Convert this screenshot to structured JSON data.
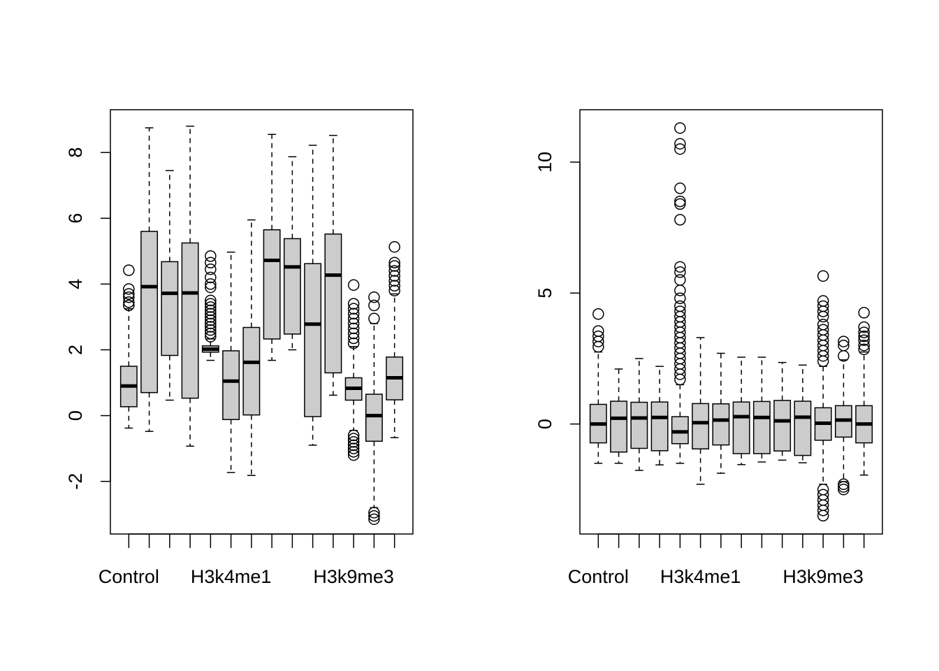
{
  "chart_data": [
    {
      "type": "boxplot",
      "xlabel": "",
      "ylabel": "",
      "ylim": [
        -3.6,
        9.3
      ],
      "y_ticks": [
        -2,
        0,
        2,
        4,
        6,
        8
      ],
      "y_tick_labels": [
        "-2",
        "0",
        "2",
        "4",
        "6",
        "8"
      ],
      "x_tick_labels": [
        {
          "index": 1,
          "label": "Control"
        },
        {
          "index": 6,
          "label": "H3k4me1"
        },
        {
          "index": 12,
          "label": "H3k9me3"
        }
      ],
      "box_fill": "#cccccc",
      "boxes": [
        {
          "q1": 0.27,
          "median": 0.9,
          "q3": 1.5,
          "lower_whisker": -0.38,
          "upper_whisker": 3.25,
          "outliers": [
            3.35,
            3.45,
            3.6,
            3.7,
            3.85,
            4.42
          ]
        },
        {
          "q1": 0.7,
          "median": 3.92,
          "q3": 5.6,
          "lower_whisker": -0.48,
          "upper_whisker": 8.75,
          "outliers": []
        },
        {
          "q1": 1.83,
          "median": 3.72,
          "q3": 4.68,
          "lower_whisker": 0.47,
          "upper_whisker": 7.45,
          "outliers": []
        },
        {
          "q1": 0.53,
          "median": 3.73,
          "q3": 5.25,
          "lower_whisker": -0.93,
          "upper_whisker": 8.8,
          "outliers": []
        },
        {
          "q1": 1.93,
          "median": 2.02,
          "q3": 2.12,
          "lower_whisker": 1.68,
          "upper_whisker": 2.33,
          "outliers": [
            2.4,
            2.5,
            2.6,
            2.7,
            2.8,
            2.9,
            3.0,
            3.1,
            3.2,
            3.3,
            3.4,
            3.5,
            3.9,
            4.0,
            4.2,
            4.45,
            4.65,
            4.85
          ]
        },
        {
          "q1": -0.12,
          "median": 1.05,
          "q3": 1.97,
          "lower_whisker": -1.73,
          "upper_whisker": 4.97,
          "outliers": []
        },
        {
          "q1": 0.02,
          "median": 1.62,
          "q3": 2.68,
          "lower_whisker": -1.82,
          "upper_whisker": 5.95,
          "outliers": []
        },
        {
          "q1": 2.33,
          "median": 4.72,
          "q3": 5.65,
          "lower_whisker": 1.68,
          "upper_whisker": 8.55,
          "outliers": []
        },
        {
          "q1": 2.48,
          "median": 4.52,
          "q3": 5.38,
          "lower_whisker": 2.0,
          "upper_whisker": 7.87,
          "outliers": []
        },
        {
          "q1": -0.03,
          "median": 2.78,
          "q3": 4.62,
          "lower_whisker": -0.9,
          "upper_whisker": 8.22,
          "outliers": []
        },
        {
          "q1": 1.3,
          "median": 4.27,
          "q3": 5.52,
          "lower_whisker": 0.62,
          "upper_whisker": 8.52,
          "outliers": []
        },
        {
          "q1": 0.47,
          "median": 0.83,
          "q3": 1.15,
          "lower_whisker": -0.45,
          "upper_whisker": 2.1,
          "outliers": [
            -1.2,
            -1.1,
            -1.0,
            -0.9,
            -0.8,
            -0.7,
            -0.6,
            2.2,
            2.35,
            2.5,
            2.65,
            2.8,
            2.95,
            3.1,
            3.25,
            3.4,
            3.97
          ]
        },
        {
          "q1": -0.78,
          "median": 0.0,
          "q3": 0.65,
          "lower_whisker": -2.8,
          "upper_whisker": 2.8,
          "outliers": [
            -3.15,
            -3.05,
            -2.95,
            2.95,
            3.35,
            3.6
          ]
        },
        {
          "q1": 0.48,
          "median": 1.15,
          "q3": 1.78,
          "lower_whisker": -0.67,
          "upper_whisker": 3.7,
          "outliers": [
            3.8,
            3.95,
            4.1,
            4.25,
            4.4,
            4.55,
            4.65,
            5.13
          ]
        }
      ]
    },
    {
      "type": "boxplot",
      "xlabel": "",
      "ylabel": "",
      "ylim": [
        -4.2,
        12.0
      ],
      "y_ticks": [
        0,
        5,
        10
      ],
      "y_tick_labels": [
        "0",
        "5",
        "10"
      ],
      "x_tick_labels": [
        {
          "index": 1,
          "label": "Control"
        },
        {
          "index": 6,
          "label": "H3k4me1"
        },
        {
          "index": 12,
          "label": "H3k9me3"
        }
      ],
      "box_fill": "#cccccc",
      "boxes": [
        {
          "q1": -0.72,
          "median": 0.0,
          "q3": 0.75,
          "lower_whisker": -1.5,
          "upper_whisker": 2.75,
          "outliers": [
            2.95,
            3.15,
            3.35,
            3.55,
            4.2
          ]
        },
        {
          "q1": -1.07,
          "median": 0.22,
          "q3": 0.87,
          "lower_whisker": -1.5,
          "upper_whisker": 2.1,
          "outliers": []
        },
        {
          "q1": -0.93,
          "median": 0.23,
          "q3": 0.83,
          "lower_whisker": -1.77,
          "upper_whisker": 2.5,
          "outliers": []
        },
        {
          "q1": -1.02,
          "median": 0.25,
          "q3": 0.84,
          "lower_whisker": -1.56,
          "upper_whisker": 2.2,
          "outliers": []
        },
        {
          "q1": -0.75,
          "median": -0.3,
          "q3": 0.28,
          "lower_whisker": -1.5,
          "upper_whisker": 1.5,
          "outliers": [
            1.7,
            1.9,
            2.1,
            2.3,
            2.5,
            2.7,
            2.9,
            3.1,
            3.3,
            3.5,
            3.7,
            3.9,
            4.1,
            4.3,
            4.5,
            4.8,
            5.1,
            5.5,
            5.8,
            6.0,
            7.8,
            8.4,
            8.5,
            9.0,
            10.5,
            10.7,
            11.3
          ]
        },
        {
          "q1": -0.95,
          "median": 0.05,
          "q3": 0.78,
          "lower_whisker": -2.3,
          "upper_whisker": 3.3,
          "outliers": []
        },
        {
          "q1": -0.8,
          "median": 0.15,
          "q3": 0.77,
          "lower_whisker": -1.88,
          "upper_whisker": 2.7,
          "outliers": []
        },
        {
          "q1": -1.13,
          "median": 0.28,
          "q3": 0.84,
          "lower_whisker": -1.55,
          "upper_whisker": 2.55,
          "outliers": []
        },
        {
          "q1": -1.13,
          "median": 0.25,
          "q3": 0.86,
          "lower_whisker": -1.45,
          "upper_whisker": 2.55,
          "outliers": []
        },
        {
          "q1": -1.03,
          "median": 0.12,
          "q3": 0.9,
          "lower_whisker": -1.38,
          "upper_whisker": 2.35,
          "outliers": []
        },
        {
          "q1": -1.2,
          "median": 0.26,
          "q3": 0.87,
          "lower_whisker": -1.48,
          "upper_whisker": 2.25,
          "outliers": []
        },
        {
          "q1": -0.62,
          "median": 0.03,
          "q3": 0.62,
          "lower_whisker": -2.3,
          "upper_whisker": 2.2,
          "outliers": [
            -3.5,
            -3.3,
            -3.1,
            -2.9,
            -2.7,
            -2.5,
            2.4,
            2.6,
            2.8,
            3.0,
            3.2,
            3.4,
            3.6,
            3.8,
            4.1,
            4.3,
            4.5,
            4.7,
            5.65
          ]
        },
        {
          "q1": -0.5,
          "median": 0.15,
          "q3": 0.7,
          "lower_whisker": -2.2,
          "upper_whisker": 2.45,
          "outliers": [
            -2.5,
            -2.4,
            -2.3,
            2.6,
            3.0,
            3.15
          ]
        },
        {
          "q1": -0.72,
          "median": 0.0,
          "q3": 0.7,
          "lower_whisker": -1.95,
          "upper_whisker": 2.75,
          "outliers": [
            2.85,
            3.0,
            3.2,
            3.35,
            3.5,
            3.7,
            4.25
          ]
        }
      ]
    }
  ]
}
